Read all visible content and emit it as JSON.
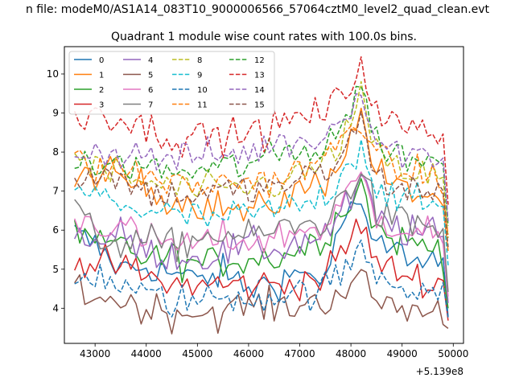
{
  "suptitle": "n file: modeM0/AS1A14_083T10_9000006566_57064cztM0_level2_quad_clean.evt",
  "chart_data": {
    "type": "line",
    "title": "Quadrant 1 module wise count rates with 100.0s bins.",
    "xlabel": "",
    "ylabel": "",
    "x_offset_label": "+5.139e8",
    "xlim": [
      42400,
      50200
    ],
    "ylim": [
      3.1,
      10.7
    ],
    "xticks": [
      43000,
      44000,
      45000,
      46000,
      47000,
      48000,
      49000,
      50000
    ],
    "yticks": [
      4,
      5,
      6,
      7,
      8,
      9,
      10
    ],
    "x_start": 42600,
    "x_step": 100,
    "n_points": 74,
    "legend_location": "upper left",
    "legend_columns": 4,
    "series": [
      {
        "name": "0",
        "color": "#1f77b4",
        "dash": "solid",
        "points": [
          [
            42600,
            5.9
          ],
          [
            43000,
            5.6
          ],
          [
            43500,
            5.0
          ],
          [
            44000,
            5.1
          ],
          [
            44500,
            4.9
          ],
          [
            45000,
            4.7
          ],
          [
            45500,
            4.9
          ],
          [
            46000,
            4.5
          ],
          [
            46500,
            4.7
          ],
          [
            47000,
            4.9
          ],
          [
            47500,
            4.8
          ],
          [
            48000,
            6.8
          ],
          [
            48200,
            6.3
          ],
          [
            48500,
            5.6
          ],
          [
            49000,
            5.4
          ],
          [
            49500,
            5.3
          ],
          [
            49800,
            5.2
          ],
          [
            49920,
            3.5
          ]
        ]
      },
      {
        "name": "1",
        "color": "#ff7f0e",
        "dash": "solid",
        "points": [
          [
            42600,
            7.1
          ],
          [
            43000,
            7.5
          ],
          [
            43500,
            7.3
          ],
          [
            44000,
            7.1
          ],
          [
            44500,
            6.8
          ],
          [
            45000,
            6.7
          ],
          [
            45500,
            6.6
          ],
          [
            46000,
            6.4
          ],
          [
            46500,
            6.7
          ],
          [
            47000,
            7.0
          ],
          [
            47500,
            7.3
          ],
          [
            48000,
            8.3
          ],
          [
            48200,
            9.0
          ],
          [
            48500,
            7.5
          ],
          [
            49000,
            7.0
          ],
          [
            49500,
            6.9
          ],
          [
            49800,
            6.8
          ],
          [
            49920,
            5.2
          ]
        ]
      },
      {
        "name": "2",
        "color": "#2ca02c",
        "dash": "solid",
        "points": [
          [
            42600,
            5.8
          ],
          [
            43000,
            5.6
          ],
          [
            43500,
            5.6
          ],
          [
            44000,
            5.3
          ],
          [
            44500,
            5.3
          ],
          [
            45000,
            5.1
          ],
          [
            45500,
            5.2
          ],
          [
            46000,
            5.3
          ],
          [
            46500,
            5.3
          ],
          [
            47000,
            5.5
          ],
          [
            47500,
            5.9
          ],
          [
            48000,
            6.8
          ],
          [
            48200,
            7.2
          ],
          [
            48500,
            6.0
          ],
          [
            49000,
            5.7
          ],
          [
            49500,
            5.6
          ],
          [
            49800,
            5.5
          ],
          [
            49920,
            3.7
          ]
        ]
      },
      {
        "name": "3",
        "color": "#d62728",
        "dash": "solid",
        "points": [
          [
            42600,
            5.2
          ],
          [
            43000,
            5.1
          ],
          [
            43500,
            5.1
          ],
          [
            44000,
            4.8
          ],
          [
            44500,
            4.6
          ],
          [
            45000,
            4.6
          ],
          [
            45500,
            4.6
          ],
          [
            46000,
            4.6
          ],
          [
            46500,
            4.6
          ],
          [
            47000,
            4.7
          ],
          [
            47500,
            4.8
          ],
          [
            48000,
            5.8
          ],
          [
            48200,
            6.2
          ],
          [
            48500,
            5.1
          ],
          [
            49000,
            4.9
          ],
          [
            49500,
            4.7
          ],
          [
            49800,
            4.6
          ],
          [
            49920,
            3.5
          ]
        ]
      },
      {
        "name": "4",
        "color": "#9467bd",
        "dash": "solid",
        "points": [
          [
            42600,
            6.0
          ],
          [
            43000,
            5.7
          ],
          [
            43500,
            5.9
          ],
          [
            44000,
            5.4
          ],
          [
            44500,
            5.4
          ],
          [
            45000,
            5.3
          ],
          [
            45500,
            5.4
          ],
          [
            46000,
            5.6
          ],
          [
            46500,
            5.5
          ],
          [
            47000,
            5.7
          ],
          [
            47500,
            5.9
          ],
          [
            48000,
            6.7
          ],
          [
            48200,
            7.3
          ],
          [
            48500,
            6.3
          ],
          [
            49000,
            6.0
          ],
          [
            49500,
            5.9
          ],
          [
            49800,
            5.8
          ],
          [
            49920,
            3.8
          ]
        ]
      },
      {
        "name": "5",
        "color": "#8c564b",
        "dash": "solid",
        "points": [
          [
            42600,
            4.6
          ],
          [
            43000,
            4.3
          ],
          [
            43500,
            4.2
          ],
          [
            44000,
            4.0
          ],
          [
            44500,
            3.9
          ],
          [
            45000,
            3.9
          ],
          [
            45500,
            3.9
          ],
          [
            46000,
            4.1
          ],
          [
            46500,
            4.0
          ],
          [
            47000,
            4.1
          ],
          [
            47500,
            4.2
          ],
          [
            48000,
            4.6
          ],
          [
            48200,
            4.7
          ],
          [
            48500,
            4.2
          ],
          [
            49000,
            4.0
          ],
          [
            49500,
            3.9
          ],
          [
            49800,
            3.9
          ],
          [
            49920,
            3.4
          ]
        ]
      },
      {
        "name": "6",
        "color": "#e377c2",
        "dash": "solid",
        "points": [
          [
            42600,
            6.3
          ],
          [
            43000,
            6.2
          ],
          [
            43500,
            6.1
          ],
          [
            44000,
            5.7
          ],
          [
            44500,
            5.7
          ],
          [
            45000,
            5.6
          ],
          [
            45500,
            5.8
          ],
          [
            46000,
            5.7
          ],
          [
            46500,
            5.8
          ],
          [
            47000,
            6.0
          ],
          [
            47500,
            6.1
          ],
          [
            48000,
            7.0
          ],
          [
            48200,
            7.4
          ],
          [
            48500,
            6.3
          ],
          [
            49000,
            6.1
          ],
          [
            49500,
            6.0
          ],
          [
            49800,
            5.8
          ],
          [
            49920,
            4.0
          ]
        ]
      },
      {
        "name": "7",
        "color": "#7f7f7f",
        "dash": "solid",
        "points": [
          [
            42600,
            6.6
          ],
          [
            43000,
            5.8
          ],
          [
            43500,
            5.7
          ],
          [
            44000,
            5.7
          ],
          [
            44500,
            5.6
          ],
          [
            45000,
            5.8
          ],
          [
            45500,
            5.9
          ],
          [
            46000,
            5.8
          ],
          [
            46500,
            6.0
          ],
          [
            47000,
            6.1
          ],
          [
            47500,
            6.2
          ],
          [
            48000,
            7.2
          ],
          [
            48200,
            7.6
          ],
          [
            48500,
            6.4
          ],
          [
            49000,
            6.2
          ],
          [
            49500,
            6.1
          ],
          [
            49800,
            6.0
          ],
          [
            49920,
            4.1
          ]
        ]
      },
      {
        "name": "8",
        "color": "#bcbd22",
        "dash": "dashed",
        "points": [
          [
            42600,
            7.9
          ],
          [
            43000,
            7.6
          ],
          [
            43500,
            7.4
          ],
          [
            44000,
            7.2
          ],
          [
            44500,
            7.1
          ],
          [
            45000,
            7.0
          ],
          [
            45500,
            7.0
          ],
          [
            46000,
            7.1
          ],
          [
            46500,
            7.2
          ],
          [
            47000,
            7.4
          ],
          [
            47500,
            7.7
          ],
          [
            48000,
            8.7
          ],
          [
            48200,
            9.4
          ],
          [
            48500,
            7.9
          ],
          [
            49000,
            7.5
          ],
          [
            49500,
            7.4
          ],
          [
            49800,
            7.3
          ],
          [
            49920,
            5.5
          ]
        ]
      },
      {
        "name": "9",
        "color": "#17becf",
        "dash": "dashed",
        "points": [
          [
            42600,
            6.9
          ],
          [
            43000,
            6.9
          ],
          [
            43500,
            6.7
          ],
          [
            44000,
            6.5
          ],
          [
            44500,
            6.4
          ],
          [
            45000,
            6.3
          ],
          [
            45500,
            6.3
          ],
          [
            46000,
            6.4
          ],
          [
            46500,
            6.5
          ],
          [
            47000,
            6.6
          ],
          [
            47500,
            6.9
          ],
          [
            48000,
            7.8
          ],
          [
            48200,
            8.2
          ],
          [
            48500,
            7.1
          ],
          [
            49000,
            6.8
          ],
          [
            49500,
            6.6
          ],
          [
            49800,
            6.6
          ],
          [
            49920,
            4.8
          ]
        ]
      },
      {
        "name": "10",
        "color": "#1f77b4",
        "dash": "dashed",
        "points": [
          [
            42600,
            4.7
          ],
          [
            43000,
            4.9
          ],
          [
            43500,
            4.6
          ],
          [
            44000,
            4.3
          ],
          [
            44500,
            4.2
          ],
          [
            45000,
            4.2
          ],
          [
            45500,
            4.3
          ],
          [
            46000,
            4.3
          ],
          [
            46500,
            4.3
          ],
          [
            47000,
            4.4
          ],
          [
            47500,
            4.5
          ],
          [
            48000,
            5.1
          ],
          [
            48200,
            5.6
          ],
          [
            48500,
            4.9
          ],
          [
            49000,
            4.6
          ],
          [
            49500,
            4.5
          ],
          [
            49800,
            4.5
          ],
          [
            49920,
            3.6
          ]
        ]
      },
      {
        "name": "11",
        "color": "#ff7f0e",
        "dash": "dashed",
        "points": [
          [
            42600,
            7.8
          ],
          [
            43000,
            7.5
          ],
          [
            43500,
            7.6
          ],
          [
            44000,
            7.4
          ],
          [
            44500,
            7.2
          ],
          [
            45000,
            7.1
          ],
          [
            45500,
            7.2
          ],
          [
            46000,
            7.3
          ],
          [
            46500,
            7.3
          ],
          [
            47000,
            7.5
          ],
          [
            47500,
            7.8
          ],
          [
            48000,
            8.6
          ],
          [
            48200,
            9.0
          ],
          [
            48500,
            7.8
          ],
          [
            49000,
            7.5
          ],
          [
            49500,
            7.4
          ],
          [
            49800,
            7.3
          ],
          [
            49920,
            5.6
          ]
        ]
      },
      {
        "name": "12",
        "color": "#2ca02c",
        "dash": "dashed",
        "points": [
          [
            42600,
            7.6
          ],
          [
            43000,
            7.6
          ],
          [
            43500,
            7.7
          ],
          [
            44000,
            7.6
          ],
          [
            44500,
            7.5
          ],
          [
            45000,
            7.5
          ],
          [
            45500,
            7.6
          ],
          [
            46000,
            7.7
          ],
          [
            46500,
            7.9
          ],
          [
            47000,
            8.0
          ],
          [
            47500,
            8.2
          ],
          [
            48000,
            9.1
          ],
          [
            48200,
            9.7
          ],
          [
            48500,
            8.3
          ],
          [
            49000,
            7.9
          ],
          [
            49500,
            7.8
          ],
          [
            49800,
            7.7
          ],
          [
            49920,
            5.8
          ]
        ]
      },
      {
        "name": "13",
        "color": "#d62728",
        "dash": "dashed",
        "points": [
          [
            42600,
            8.8
          ],
          [
            43000,
            9.1
          ],
          [
            43500,
            8.9
          ],
          [
            44000,
            8.6
          ],
          [
            44500,
            8.4
          ],
          [
            45000,
            8.4
          ],
          [
            45500,
            8.4
          ],
          [
            46000,
            8.5
          ],
          [
            46500,
            8.6
          ],
          [
            47000,
            8.9
          ],
          [
            47500,
            9.0
          ],
          [
            48000,
            9.7
          ],
          [
            48200,
            10.4
          ],
          [
            48500,
            9.0
          ],
          [
            49000,
            8.6
          ],
          [
            49500,
            8.5
          ],
          [
            49800,
            8.4
          ],
          [
            49920,
            6.3
          ]
        ]
      },
      {
        "name": "14",
        "color": "#9467bd",
        "dash": "dashed",
        "points": [
          [
            42600,
            8.1
          ],
          [
            43000,
            8.0
          ],
          [
            43500,
            8.0
          ],
          [
            44000,
            7.9
          ],
          [
            44500,
            7.8
          ],
          [
            45000,
            7.9
          ],
          [
            45500,
            7.9
          ],
          [
            46000,
            8.0
          ],
          [
            46500,
            8.2
          ],
          [
            47000,
            8.3
          ],
          [
            47500,
            8.4
          ],
          [
            48000,
            9.3
          ],
          [
            48200,
            9.6
          ],
          [
            48500,
            8.2
          ],
          [
            49000,
            8.0
          ],
          [
            49500,
            7.9
          ],
          [
            49800,
            7.9
          ],
          [
            49920,
            5.9
          ]
        ]
      },
      {
        "name": "15",
        "color": "#8c564b",
        "dash": "dashed",
        "points": [
          [
            42600,
            7.3
          ],
          [
            43000,
            7.5
          ],
          [
            43500,
            7.3
          ],
          [
            44000,
            7.0
          ],
          [
            44500,
            6.9
          ],
          [
            45000,
            6.9
          ],
          [
            45500,
            7.0
          ],
          [
            46000,
            7.0
          ],
          [
            46500,
            7.1
          ],
          [
            47000,
            7.3
          ],
          [
            47500,
            7.4
          ],
          [
            48000,
            8.3
          ],
          [
            48200,
            8.8
          ],
          [
            48500,
            7.3
          ],
          [
            49000,
            7.1
          ],
          [
            49500,
            7.0
          ],
          [
            49800,
            6.9
          ],
          [
            49920,
            5.3
          ]
        ]
      }
    ]
  }
}
